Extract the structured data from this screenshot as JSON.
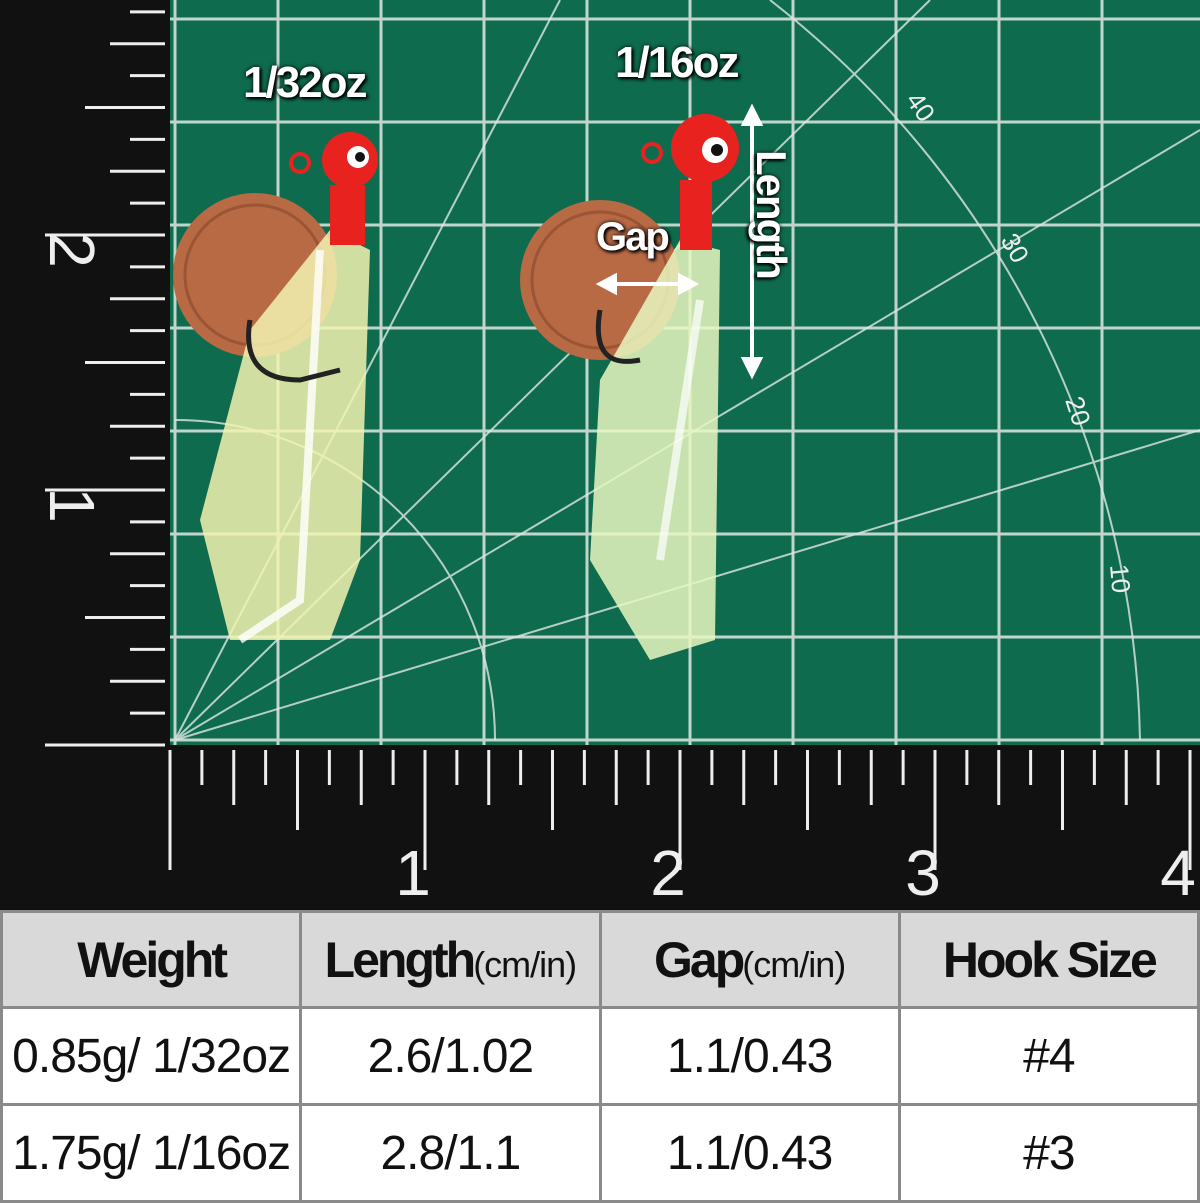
{
  "photo": {
    "labels": {
      "small_weight": "1/32oz",
      "large_weight": "1/16oz",
      "gap": "Gap",
      "length": "Length"
    },
    "ruler_left": [
      "2",
      "1"
    ],
    "ruler_bottom": [
      "1",
      "2",
      "3",
      "4"
    ],
    "mat_angles": [
      "40",
      "30",
      "20",
      "10"
    ],
    "colors": {
      "mat": "#0f6b4e",
      "ruler": "#111111",
      "jig_head": "#e8231f",
      "penny": "#b86a45"
    }
  },
  "table": {
    "headers": [
      {
        "label": "Weight",
        "unit": ""
      },
      {
        "label": "Length",
        "unit": "(cm/in)"
      },
      {
        "label": "Gap",
        "unit": "(cm/in)"
      },
      {
        "label": "Hook Size",
        "unit": ""
      }
    ],
    "rows": [
      [
        "0.85g/ 1/32oz",
        "2.6/1.02",
        "1.1/0.43",
        "#4"
      ],
      [
        "1.75g/ 1/16oz",
        "2.8/1.1",
        "1.1/0.43",
        "#3"
      ]
    ]
  }
}
